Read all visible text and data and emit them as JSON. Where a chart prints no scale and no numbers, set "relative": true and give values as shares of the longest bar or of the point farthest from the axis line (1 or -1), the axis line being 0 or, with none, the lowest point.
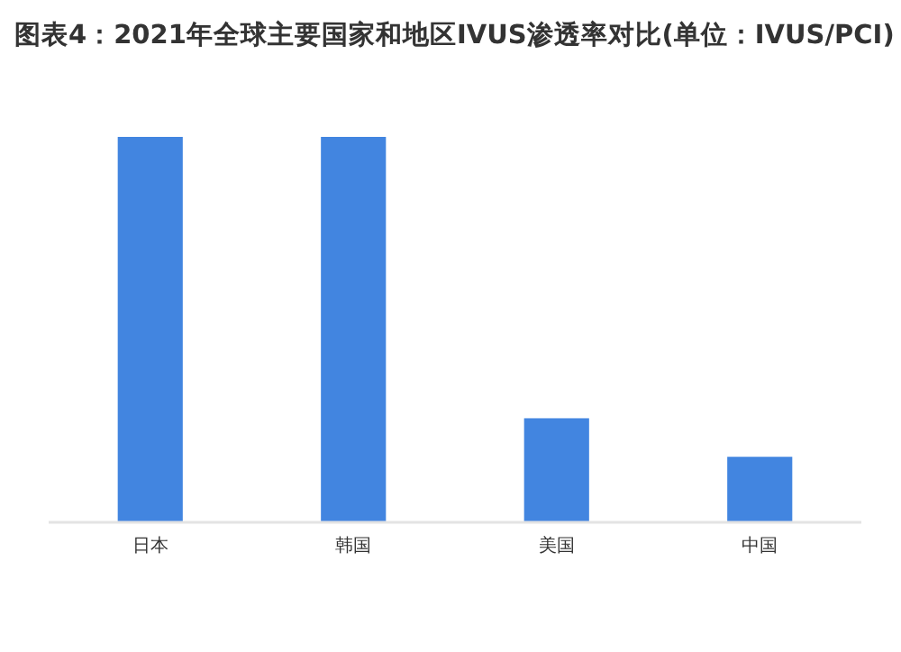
{
  "chart_data": {
    "type": "bar",
    "title": "图表4：2021年全球主要国家和地区IVUS渗透率对比(单位：IVUS/PCI)",
    "categories": [
      "日本",
      "韩国",
      "美国",
      "中国"
    ],
    "values": [
      1,
      1,
      0.27,
      0.17
    ],
    "color": "#4285e0",
    "relative": true
  }
}
